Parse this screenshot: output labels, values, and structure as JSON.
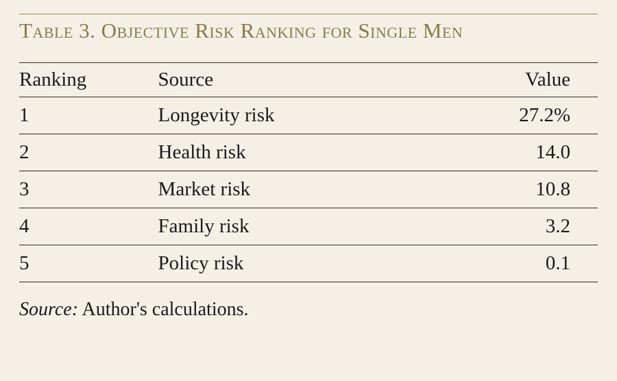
{
  "title": "Table 3. Objective Risk Ranking for Single Men",
  "columns": {
    "ranking": "Ranking",
    "source": "Source",
    "value": "Value"
  },
  "rows": [
    {
      "ranking": "1",
      "source": "Longevity risk",
      "value": "27.2%"
    },
    {
      "ranking": "2",
      "source": "Health risk",
      "value": "14.0"
    },
    {
      "ranking": "3",
      "source": "Market risk",
      "value": "10.8"
    },
    {
      "ranking": "4",
      "source": "Family risk",
      "value": "3.2"
    },
    {
      "ranking": "5",
      "source": "Policy risk",
      "value": "0.1"
    }
  ],
  "sourceNote": {
    "label": "Source:",
    "text": " Author's calculations."
  },
  "style": {
    "background_color": "#f5f0e6",
    "title_color": "#8a7a4a",
    "title_rule_color": "#9b8a5a",
    "rule_color": "#2a2a2a",
    "text_color": "#1a1a1a",
    "title_fontsize": 31,
    "body_fontsize": 29,
    "source_fontsize": 28
  }
}
